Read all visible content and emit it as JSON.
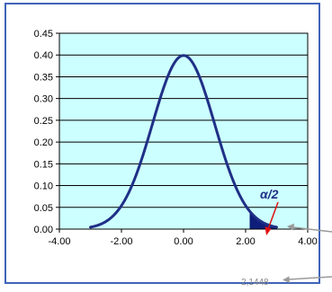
{
  "chart_data": {
    "type": "area",
    "title": "",
    "xlabel": "",
    "ylabel": "",
    "xlim": [
      -4,
      4
    ],
    "ylim": [
      0,
      0.45
    ],
    "x_ticks": [
      -4,
      -2,
      0,
      2,
      4
    ],
    "x_tick_labels": [
      "-4.00",
      "-2.00",
      "0.00",
      "2.00",
      "4.00"
    ],
    "y_ticks": [
      0,
      0.05,
      0.1,
      0.15,
      0.2,
      0.25,
      0.3,
      0.35,
      0.4,
      0.45
    ],
    "y_tick_labels": [
      "0.00",
      "0.05",
      "0.10",
      "0.15",
      "0.20",
      "0.25",
      "0.30",
      "0.35",
      "0.40",
      "0.45"
    ],
    "grid": "horizontal",
    "series": [
      {
        "type": "line",
        "distribution": "standard normal density",
        "x_range": [
          -3,
          3
        ],
        "x": [
          -3,
          -2.5,
          -2,
          -1.5,
          -1,
          -0.5,
          0,
          0.5,
          1,
          1.5,
          2,
          2.5,
          3
        ],
        "y": [
          0.004,
          0.018,
          0.054,
          0.13,
          0.242,
          0.352,
          0.399,
          0.352,
          0.242,
          0.13,
          0.054,
          0.018,
          0.004
        ],
        "color": "#1f2f86"
      },
      {
        "type": "area",
        "x_range": [
          2.1448,
          3
        ],
        "color": "#0d1f7a"
      }
    ],
    "annotations": {
      "alpha": "α/2",
      "critical_value": "2,1448"
    }
  },
  "colors": {
    "frame": "#3f63b8",
    "plot_bg": "#ccffff",
    "curve": "#1f2f86",
    "tail": "#0d1f7a",
    "label_alpha": "#1f2f86",
    "arrow_red": "#e01010",
    "callout_gray": "#9a9a9a",
    "critical_text": "#8a8a8a"
  }
}
